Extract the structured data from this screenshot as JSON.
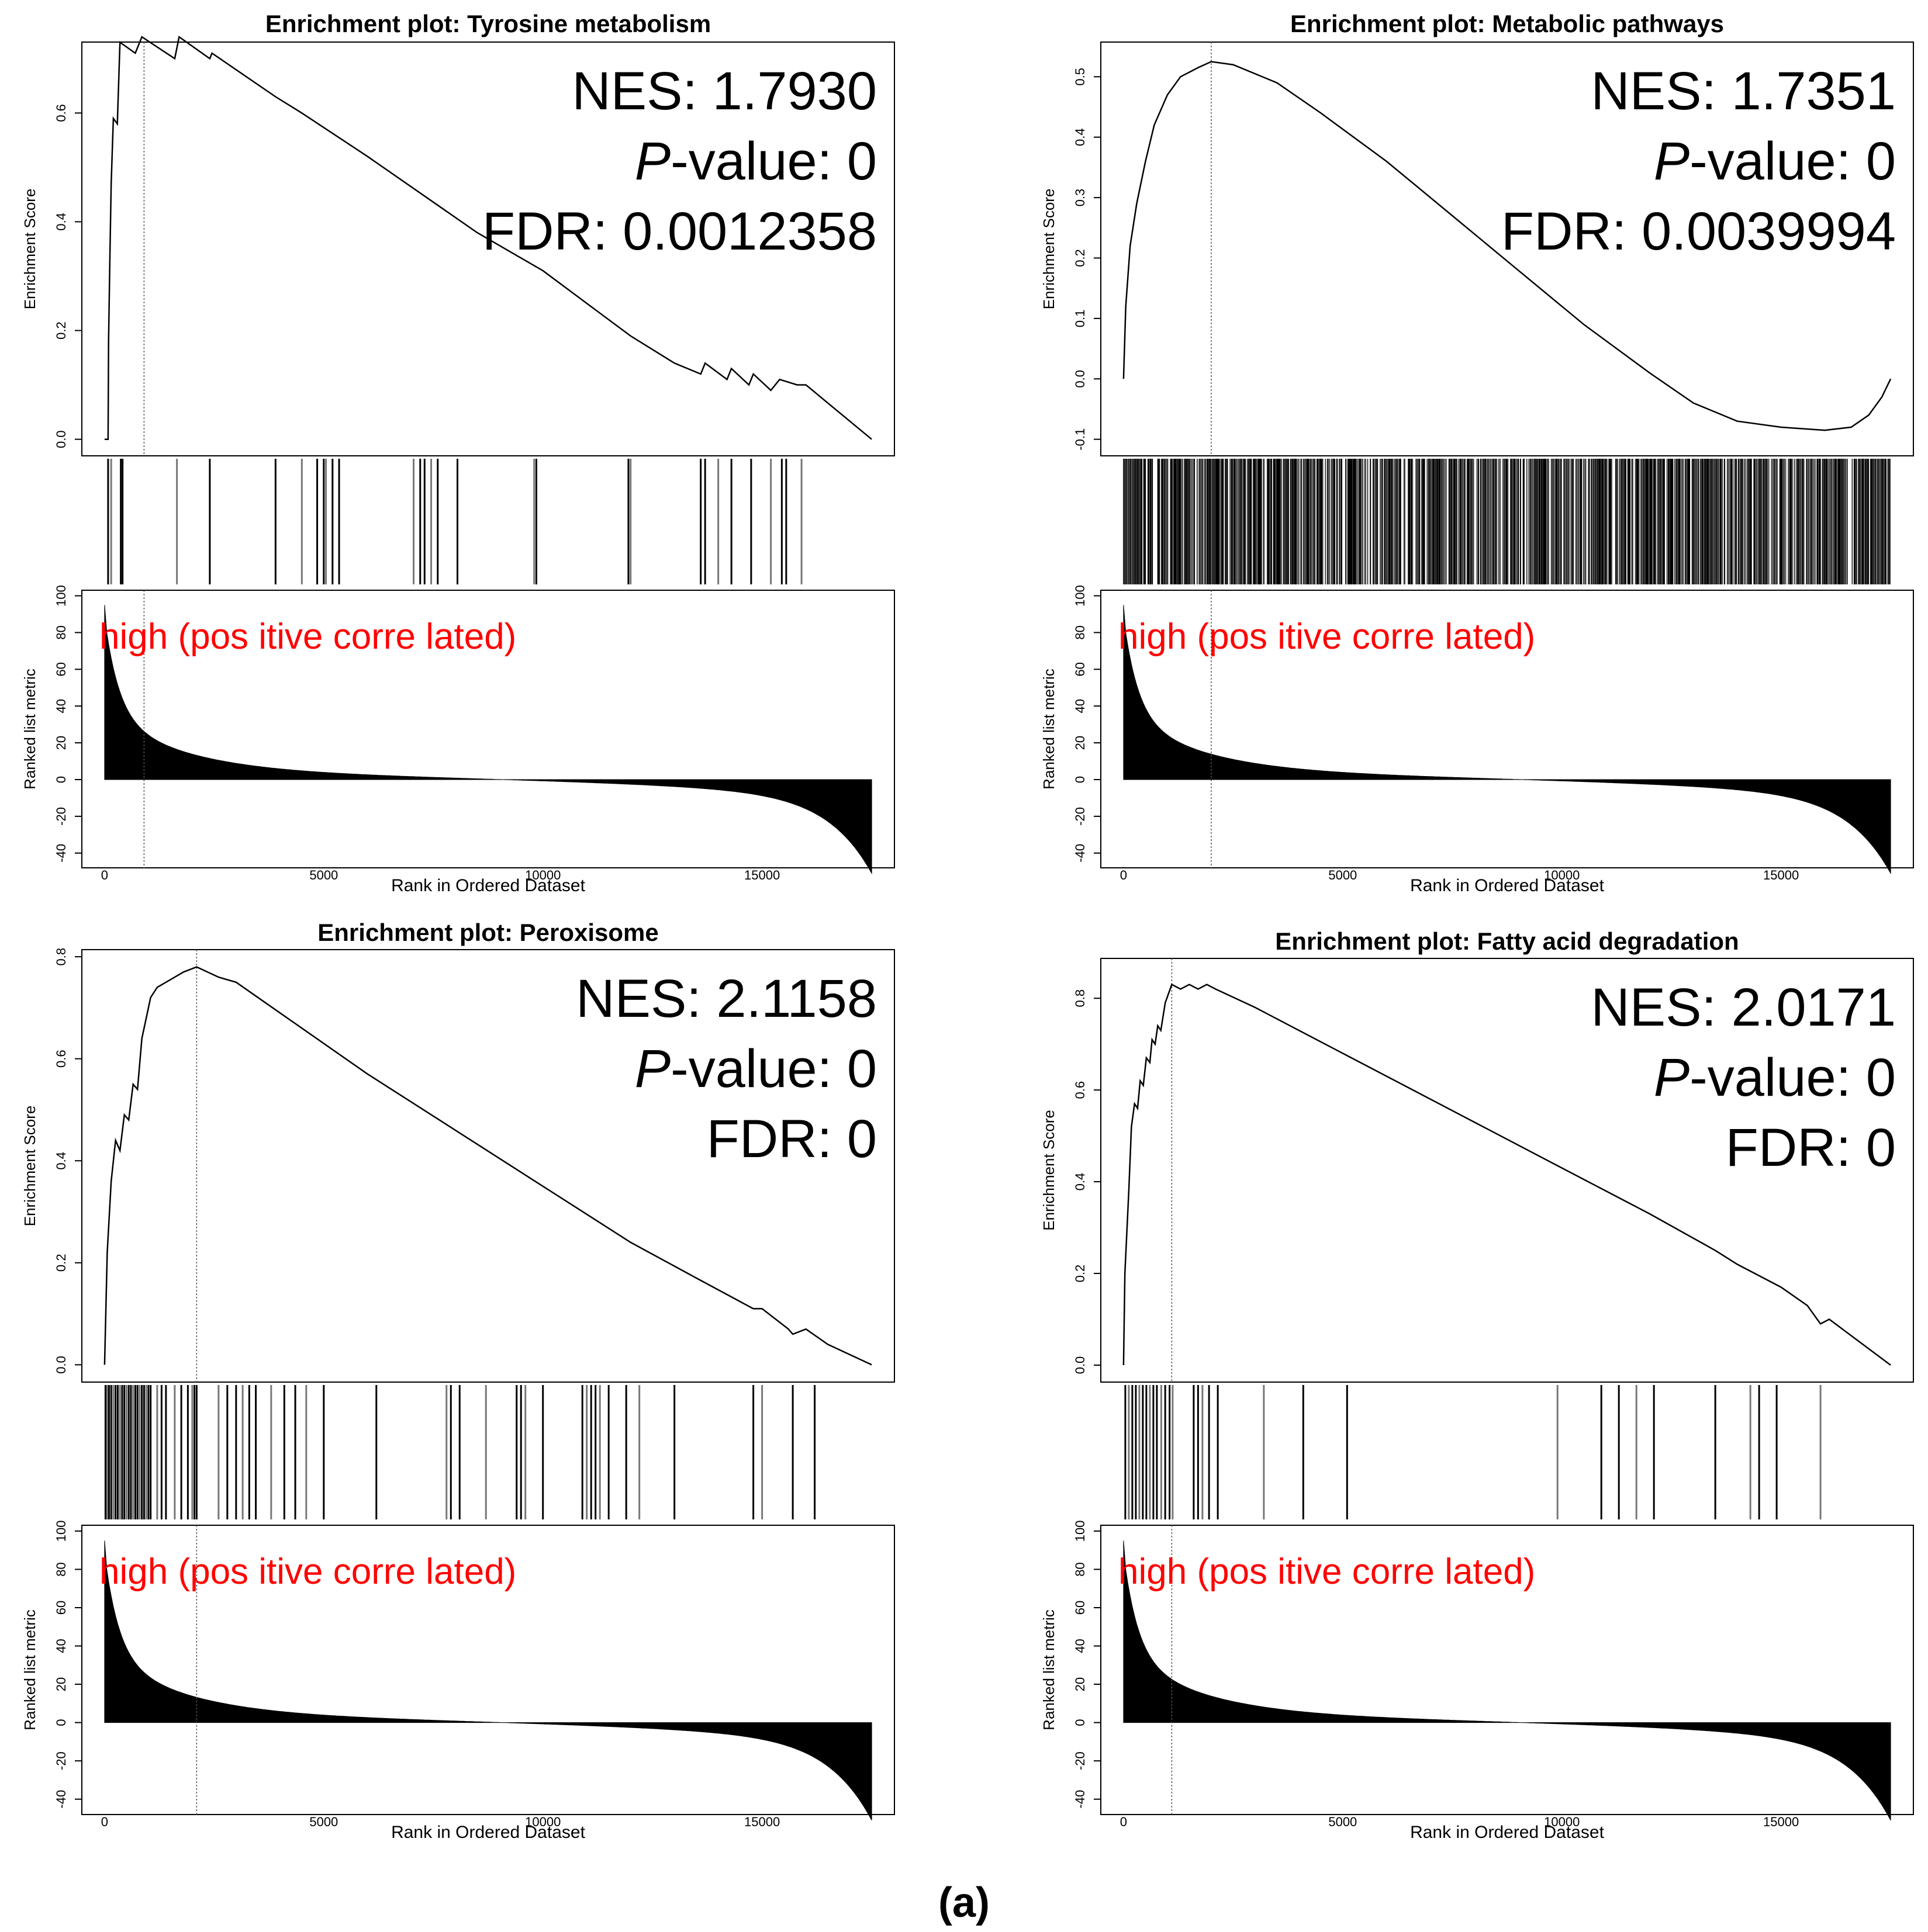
{
  "figure_label": "(a)",
  "x_axis_label": "Rank in Ordered Dataset",
  "es_axis_label": "Enrichment Score",
  "metric_axis_label": "Ranked list metric",
  "metric_annotation": "high (pos itive corre lated)",
  "stat_labels": {
    "nes": "NES:",
    "p_prefix": "P",
    "p_suffix": "-value:",
    "fdr": "FDR:"
  },
  "colors": {
    "line": "#000000",
    "annotation": "#ff0000",
    "frame": "#000000"
  },
  "chart_data": [
    {
      "type": "line",
      "title": "Enrichment plot: Tyrosine metabolism",
      "nes": "1.7930",
      "p_value": "0",
      "fdr": "0.0012358",
      "x_range": [
        0,
        17500
      ],
      "es_range": [
        0.0,
        0.7
      ],
      "es_ticks": [
        {
          "v": 0.0,
          "label": "0.0"
        },
        {
          "v": 0.2,
          "label": "0.2"
        },
        {
          "v": 0.4,
          "label": "0.4"
        },
        {
          "v": 0.6,
          "label": "0.6"
        }
      ],
      "x_ticks": [
        {
          "v": 0,
          "label": "0"
        },
        {
          "v": 5000,
          "label": "5000"
        },
        {
          "v": 10000,
          "label": "10000"
        },
        {
          "v": 15000,
          "label": "15000"
        }
      ],
      "metric_range": [
        -45,
        100
      ],
      "metric_ticks": [
        -40,
        -20,
        0,
        20,
        40,
        60,
        80,
        100
      ],
      "peak_rank": 900,
      "es_curve": [
        [
          0,
          0.0
        ],
        [
          80,
          0.0
        ],
        [
          90,
          0.18
        ],
        [
          120,
          0.33
        ],
        [
          150,
          0.47
        ],
        [
          200,
          0.59
        ],
        [
          290,
          0.58
        ],
        [
          350,
          0.73
        ],
        [
          700,
          0.71
        ],
        [
          850,
          0.74
        ],
        [
          1600,
          0.7
        ],
        [
          1700,
          0.74
        ],
        [
          2400,
          0.7
        ],
        [
          2450,
          0.71
        ],
        [
          3900,
          0.63
        ],
        [
          4500,
          0.6
        ],
        [
          6000,
          0.52
        ],
        [
          8500,
          0.38
        ],
        [
          10000,
          0.31
        ],
        [
          11000,
          0.25
        ],
        [
          12000,
          0.19
        ],
        [
          13000,
          0.14
        ],
        [
          13600,
          0.12
        ],
        [
          13700,
          0.14
        ],
        [
          14200,
          0.11
        ],
        [
          14300,
          0.13
        ],
        [
          14700,
          0.1
        ],
        [
          14800,
          0.12
        ],
        [
          15200,
          0.09
        ],
        [
          15400,
          0.11
        ],
        [
          15800,
          0.1
        ],
        [
          16000,
          0.1
        ],
        [
          17500,
          0.0
        ]
      ],
      "hit_ranks": [
        80,
        150,
        370,
        410,
        1650,
        2400,
        3900,
        4500,
        4850,
        5000,
        5050,
        5200,
        5350,
        7050,
        7200,
        7300,
        7450,
        7600,
        8050,
        9800,
        9850,
        11950,
        12000,
        13600,
        13700,
        14000,
        14300,
        14750,
        15200,
        15450,
        15550,
        15900
      ]
    },
    {
      "type": "line",
      "title": "Enrichment plot: Metabolic pathways",
      "nes": "1.7351",
      "p_value": "0",
      "fdr": "0.0039994",
      "x_range": [
        0,
        17500
      ],
      "es_range": [
        -0.1,
        0.53
      ],
      "es_ticks": [
        {
          "v": -0.1,
          "label": "-0.1"
        },
        {
          "v": 0.0,
          "label": "0.0"
        },
        {
          "v": 0.1,
          "label": "0.1"
        },
        {
          "v": 0.2,
          "label": "0.2"
        },
        {
          "v": 0.3,
          "label": "0.3"
        },
        {
          "v": 0.4,
          "label": "0.4"
        },
        {
          "v": 0.5,
          "label": "0.5"
        }
      ],
      "x_ticks": [
        {
          "v": 0,
          "label": "0"
        },
        {
          "v": 5000,
          "label": "5000"
        },
        {
          "v": 10000,
          "label": "10000"
        },
        {
          "v": 15000,
          "label": "15000"
        }
      ],
      "metric_range": [
        -45,
        100
      ],
      "metric_ticks": [
        -40,
        -20,
        0,
        20,
        40,
        60,
        80,
        100
      ],
      "peak_rank": 2000,
      "es_curve": [
        [
          0,
          0.0
        ],
        [
          50,
          0.12
        ],
        [
          150,
          0.22
        ],
        [
          300,
          0.29
        ],
        [
          500,
          0.36
        ],
        [
          700,
          0.42
        ],
        [
          1000,
          0.47
        ],
        [
          1300,
          0.5
        ],
        [
          1700,
          0.515
        ],
        [
          2000,
          0.525
        ],
        [
          2500,
          0.52
        ],
        [
          3500,
          0.49
        ],
        [
          4500,
          0.44
        ],
        [
          6000,
          0.36
        ],
        [
          7500,
          0.27
        ],
        [
          9000,
          0.18
        ],
        [
          10500,
          0.09
        ],
        [
          12000,
          0.01
        ],
        [
          13000,
          -0.04
        ],
        [
          14000,
          -0.07
        ],
        [
          15000,
          -0.08
        ],
        [
          16000,
          -0.085
        ],
        [
          16600,
          -0.08
        ],
        [
          17000,
          -0.06
        ],
        [
          17300,
          -0.03
        ],
        [
          17500,
          0.0
        ]
      ],
      "hit_ranks": [],
      "hit_dense": true
    },
    {
      "type": "line",
      "title": "Enrichment plot: Peroxisome",
      "nes": "2.1158",
      "p_value": "0",
      "fdr": "0",
      "x_range": [
        0,
        17500
      ],
      "es_range": [
        0.0,
        0.78
      ],
      "es_ticks": [
        {
          "v": 0.0,
          "label": "0.0"
        },
        {
          "v": 0.2,
          "label": "0.2"
        },
        {
          "v": 0.4,
          "label": "0.4"
        },
        {
          "v": 0.6,
          "label": "0.6"
        },
        {
          "v": 0.8,
          "label": "0.8"
        }
      ],
      "x_ticks": [
        {
          "v": 0,
          "label": "0"
        },
        {
          "v": 5000,
          "label": "5000"
        },
        {
          "v": 10000,
          "label": "10000"
        },
        {
          "v": 15000,
          "label": "15000"
        }
      ],
      "metric_range": [
        -45,
        100
      ],
      "metric_ticks": [
        -40,
        -20,
        0,
        20,
        40,
        60,
        80,
        100
      ],
      "peak_rank": 2100,
      "es_curve": [
        [
          0,
          0.0
        ],
        [
          60,
          0.22
        ],
        [
          150,
          0.36
        ],
        [
          250,
          0.44
        ],
        [
          350,
          0.42
        ],
        [
          450,
          0.49
        ],
        [
          550,
          0.48
        ],
        [
          650,
          0.55
        ],
        [
          750,
          0.54
        ],
        [
          850,
          0.64
        ],
        [
          950,
          0.68
        ],
        [
          1050,
          0.72
        ],
        [
          1200,
          0.74
        ],
        [
          1400,
          0.75
        ],
        [
          1600,
          0.76
        ],
        [
          1800,
          0.77
        ],
        [
          2100,
          0.78
        ],
        [
          2600,
          0.76
        ],
        [
          3000,
          0.75
        ],
        [
          4000,
          0.69
        ],
        [
          6000,
          0.57
        ],
        [
          8000,
          0.46
        ],
        [
          10000,
          0.35
        ],
        [
          12000,
          0.24
        ],
        [
          13500,
          0.17
        ],
        [
          14800,
          0.11
        ],
        [
          15000,
          0.11
        ],
        [
          15600,
          0.07
        ],
        [
          15700,
          0.06
        ],
        [
          16000,
          0.07
        ],
        [
          16500,
          0.04
        ],
        [
          17500,
          0.0
        ]
      ],
      "hit_ranks": [
        20,
        60,
        100,
        150,
        200,
        250,
        300,
        350,
        400,
        450,
        500,
        550,
        600,
        650,
        700,
        750,
        800,
        850,
        900,
        950,
        1000,
        1050,
        1200,
        1300,
        1400,
        1600,
        1750,
        1900,
        2000,
        2050,
        2100,
        2600,
        2800,
        3000,
        3150,
        3300,
        3450,
        3800,
        4100,
        4350,
        4600,
        5000,
        6200,
        7800,
        7900,
        8100,
        8700,
        9400,
        9500,
        9600,
        10000,
        10900,
        11000,
        11100,
        11200,
        11300,
        11500,
        11900,
        12200,
        13000,
        14800,
        15000,
        15700,
        16200
      ]
    },
    {
      "type": "line",
      "title": "Enrichment plot: Fatty acid degradation",
      "nes": "2.0171",
      "p_value": "0",
      "fdr": "0",
      "x_range": [
        0,
        17500
      ],
      "es_range": [
        0.0,
        0.85
      ],
      "es_ticks": [
        {
          "v": 0.0,
          "label": "0.0"
        },
        {
          "v": 0.2,
          "label": "0.2"
        },
        {
          "v": 0.4,
          "label": "0.4"
        },
        {
          "v": 0.6,
          "label": "0.6"
        },
        {
          "v": 0.8,
          "label": "0.8"
        }
      ],
      "x_ticks": [
        {
          "v": 0,
          "label": "0"
        },
        {
          "v": 5000,
          "label": "5000"
        },
        {
          "v": 10000,
          "label": "10000"
        },
        {
          "v": 15000,
          "label": "15000"
        }
      ],
      "metric_range": [
        -45,
        100
      ],
      "metric_ticks": [
        -40,
        -20,
        0,
        20,
        40,
        60,
        80,
        100
      ],
      "peak_rank": 1100,
      "es_curve": [
        [
          0,
          0.0
        ],
        [
          30,
          0.2
        ],
        [
          120,
          0.38
        ],
        [
          180,
          0.52
        ],
        [
          250,
          0.57
        ],
        [
          320,
          0.56
        ],
        [
          380,
          0.62
        ],
        [
          450,
          0.61
        ],
        [
          520,
          0.67
        ],
        [
          600,
          0.66
        ],
        [
          650,
          0.71
        ],
        [
          720,
          0.7
        ],
        [
          780,
          0.74
        ],
        [
          850,
          0.73
        ],
        [
          950,
          0.79
        ],
        [
          1100,
          0.83
        ],
        [
          1300,
          0.82
        ],
        [
          1500,
          0.83
        ],
        [
          1700,
          0.82
        ],
        [
          1900,
          0.83
        ],
        [
          2100,
          0.82
        ],
        [
          3000,
          0.78
        ],
        [
          5000,
          0.68
        ],
        [
          8000,
          0.53
        ],
        [
          10000,
          0.43
        ],
        [
          12000,
          0.33
        ],
        [
          13500,
          0.25
        ],
        [
          14000,
          0.22
        ],
        [
          15000,
          0.17
        ],
        [
          15600,
          0.13
        ],
        [
          15900,
          0.09
        ],
        [
          16100,
          0.1
        ],
        [
          17500,
          0.0
        ]
      ],
      "hit_ranks": [
        40,
        120,
        200,
        280,
        360,
        440,
        520,
        600,
        680,
        760,
        860,
        950,
        1050,
        1120,
        1600,
        1700,
        1800,
        1950,
        2150,
        3200,
        4100,
        5100,
        9900,
        10900,
        11300,
        11700,
        12100,
        13500,
        14300,
        14500,
        14900,
        15900
      ]
    }
  ]
}
